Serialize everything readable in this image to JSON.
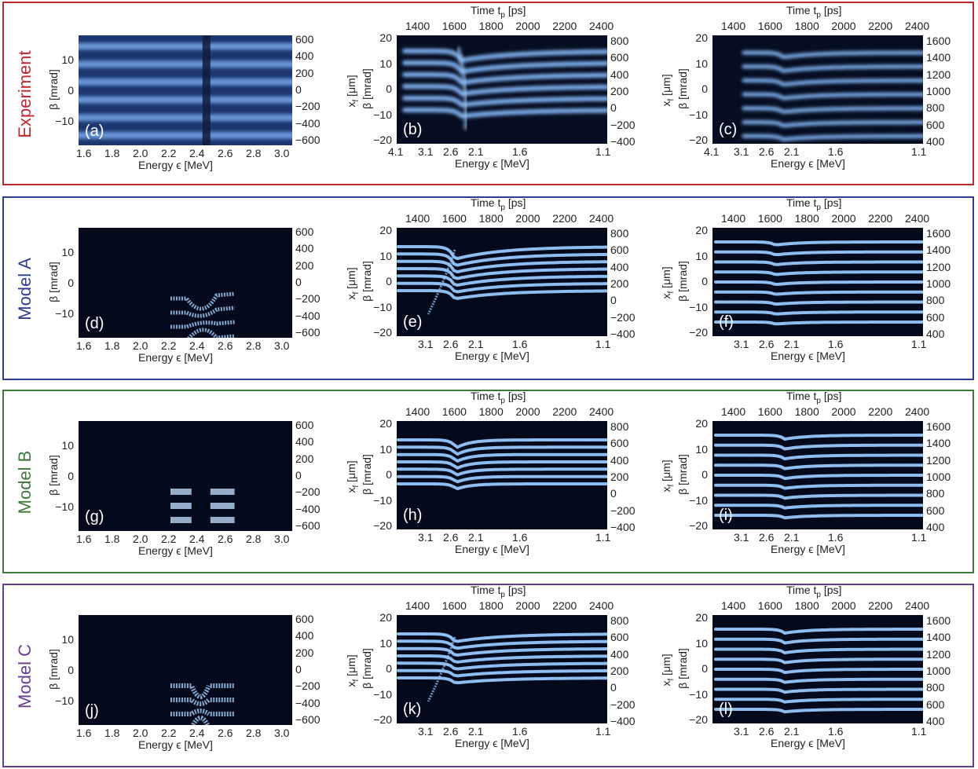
{
  "rows": [
    {
      "label": "Experiment",
      "color": "#c0272d",
      "kind": "exp",
      "panels": [
        "(a)",
        "(b)",
        "(c)"
      ]
    },
    {
      "label": "Model A",
      "color": "#2e3d8f",
      "kind": "A",
      "panels": [
        "(d)",
        "(e)",
        "(f)"
      ]
    },
    {
      "label": "Model B",
      "color": "#3d7a3a",
      "kind": "B",
      "panels": [
        "(g)",
        "(h)",
        "(i)"
      ]
    },
    {
      "label": "Model C",
      "color": "#6b3d8f",
      "kind": "C",
      "panels": [
        "(j)",
        "(k)",
        "(l)"
      ]
    }
  ],
  "axes": {
    "energy_label": "Energy ϵ [MeV]",
    "beta_label": "β [mrad]",
    "xf_label": "x_f [μm]",
    "xf_label_text": "x",
    "xf_sub": "f",
    "xf_unit": " [μm]",
    "time_label_main": "Time t",
    "time_label_sub": "p",
    "time_label_unit": " [ps]",
    "col1_energy_ticks": [
      "1.6",
      "1.8",
      "2.0",
      "2.2",
      "2.4",
      "2.6",
      "2.8",
      "3.0"
    ],
    "col23_energy_ticks_exp": [
      "4.1",
      "3.1",
      "2.6",
      "2.1",
      "1.6",
      "1.1"
    ],
    "col23_energy_ticks_model": [
      "3.1",
      "2.6",
      "2.1",
      "1.6",
      "1.1"
    ],
    "time_ticks": [
      "1400",
      "1600",
      "1800",
      "2000",
      "2200",
      "2400"
    ],
    "col1_beta_ticks": [
      "10",
      "0",
      "−10"
    ],
    "col23_beta_ticks": [
      "20",
      "10",
      "0",
      "−10",
      "−20"
    ],
    "col1_xf_ticks": [
      "600",
      "400",
      "200",
      "0",
      "−200",
      "−400",
      "−600"
    ],
    "col2_xf_ticks": [
      "800",
      "600",
      "400",
      "200",
      "0",
      "−200",
      "−400"
    ],
    "col3_xf_ticks": [
      "1600",
      "1400",
      "1200",
      "1000",
      "800",
      "600",
      "400"
    ]
  }
}
